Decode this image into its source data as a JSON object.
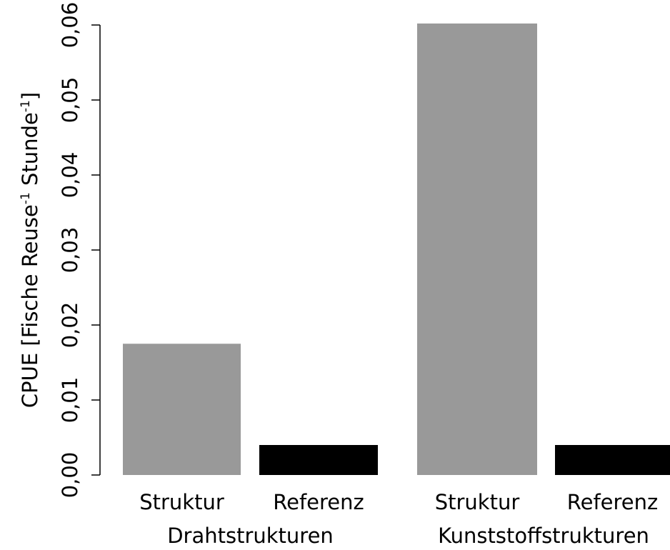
{
  "chart_data": {
    "type": "bar",
    "ylabel": [
      "CPUE [Fische Reuse",
      "-1",
      " Stunde",
      "-1",
      "]"
    ],
    "categories": [
      "Struktur",
      "Referenz",
      "Struktur",
      "Referenz"
    ],
    "groups": [
      "Drahtstrukturen",
      "Kunststoffstrukturen"
    ],
    "values": [
      0.0175,
      0.004,
      0.0602,
      0.004
    ],
    "colors": [
      "#999999",
      "#000000",
      "#999999",
      "#000000"
    ],
    "ylim": [
      0,
      0.06
    ],
    "yticks": [
      {
        "value": 0,
        "label": "0,00"
      },
      {
        "value": 0.01,
        "label": "0,01"
      },
      {
        "value": 0.02,
        "label": "0,02"
      },
      {
        "value": 0.03,
        "label": "0,03"
      },
      {
        "value": 0.04,
        "label": "0,04"
      },
      {
        "value": 0.05,
        "label": "0,05"
      },
      {
        "value": 0.06,
        "label": "0,06"
      }
    ],
    "grid": false
  }
}
